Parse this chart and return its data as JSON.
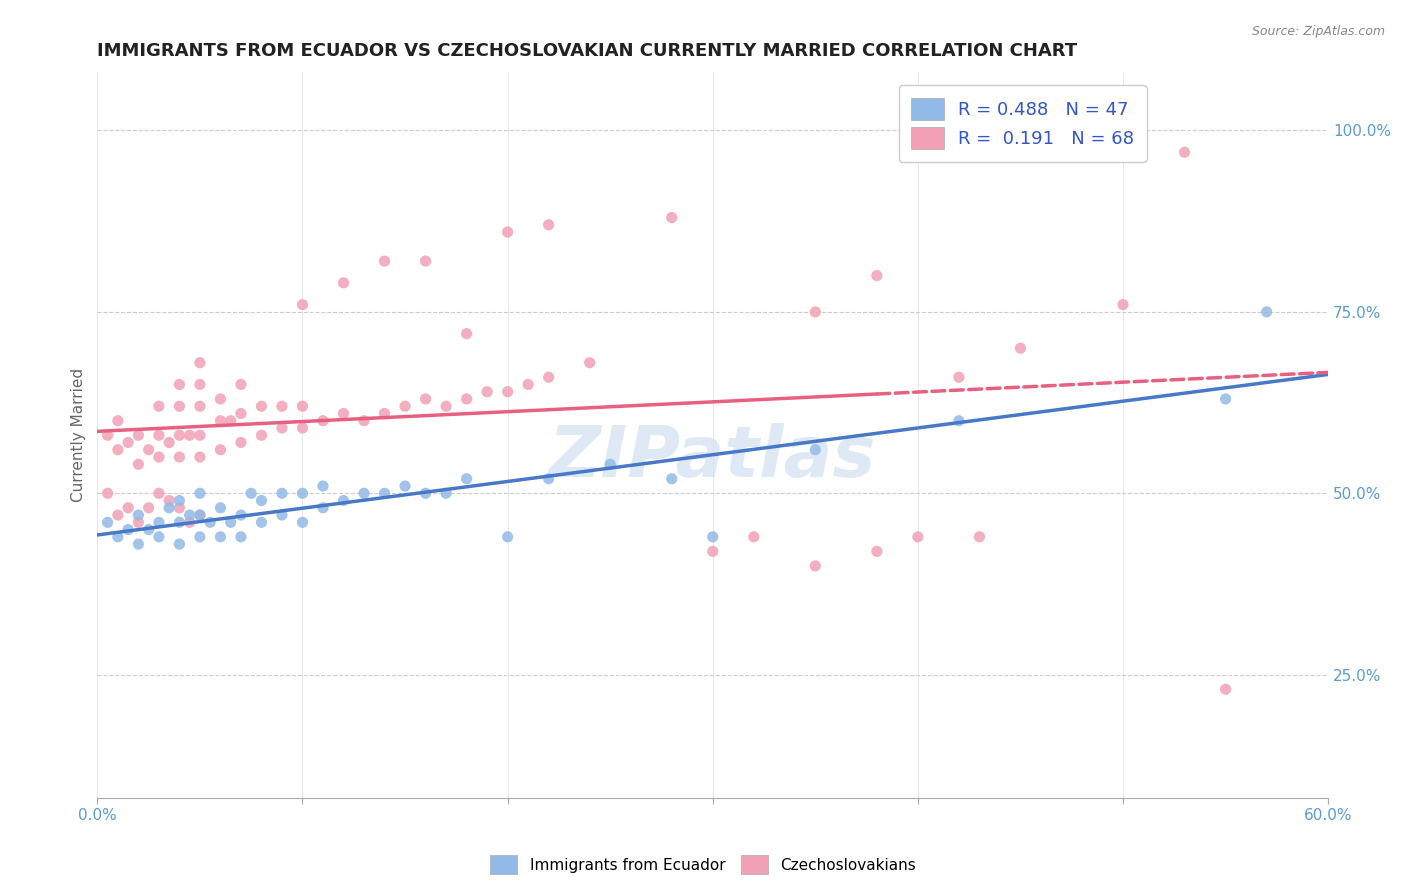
{
  "title": "IMMIGRANTS FROM ECUADOR VS CZECHOSLOVAKIAN CURRENTLY MARRIED CORRELATION CHART",
  "source_text": "Source: ZipAtlas.com",
  "ylabel": "Currently Married",
  "xlim": [
    0.0,
    0.6
  ],
  "ylim": [
    0.08,
    1.08
  ],
  "ytick_positions": [
    0.25,
    0.5,
    0.75,
    1.0
  ],
  "ytick_labels": [
    "25.0%",
    "50.0%",
    "75.0%",
    "100.0%"
  ],
  "watermark": "ZIPatlas",
  "blue_color": "#92BAE8",
  "pink_color": "#F2A0B5",
  "blue_line_color": "#4878C8",
  "pink_line_color": "#E86080",
  "legend_R_blue": "0.488",
  "legend_N_blue": "47",
  "legend_R_pink": "0.191",
  "legend_N_pink": "68",
  "title_fontsize": 13,
  "axis_label_fontsize": 11,
  "tick_fontsize": 11,
  "legend_fontsize": 13,
  "blue_x": [
    0.005,
    0.01,
    0.015,
    0.02,
    0.02,
    0.025,
    0.03,
    0.03,
    0.035,
    0.04,
    0.04,
    0.04,
    0.045,
    0.05,
    0.05,
    0.05,
    0.055,
    0.06,
    0.06,
    0.065,
    0.07,
    0.07,
    0.075,
    0.08,
    0.08,
    0.09,
    0.09,
    0.1,
    0.1,
    0.11,
    0.11,
    0.12,
    0.13,
    0.14,
    0.15,
    0.16,
    0.17,
    0.18,
    0.2,
    0.22,
    0.25,
    0.28,
    0.3,
    0.35,
    0.42,
    0.55,
    0.57
  ],
  "blue_y": [
    0.46,
    0.44,
    0.45,
    0.43,
    0.47,
    0.45,
    0.44,
    0.46,
    0.48,
    0.43,
    0.46,
    0.49,
    0.47,
    0.44,
    0.47,
    0.5,
    0.46,
    0.44,
    0.48,
    0.46,
    0.44,
    0.47,
    0.5,
    0.46,
    0.49,
    0.47,
    0.5,
    0.46,
    0.5,
    0.48,
    0.51,
    0.49,
    0.5,
    0.5,
    0.51,
    0.5,
    0.5,
    0.52,
    0.44,
    0.52,
    0.54,
    0.52,
    0.44,
    0.56,
    0.6,
    0.63,
    0.75
  ],
  "pink_x": [
    0.005,
    0.01,
    0.01,
    0.015,
    0.02,
    0.02,
    0.025,
    0.03,
    0.03,
    0.03,
    0.035,
    0.04,
    0.04,
    0.04,
    0.04,
    0.045,
    0.05,
    0.05,
    0.05,
    0.05,
    0.05,
    0.06,
    0.06,
    0.06,
    0.065,
    0.07,
    0.07,
    0.07,
    0.08,
    0.08,
    0.09,
    0.09,
    0.1,
    0.1,
    0.11,
    0.12,
    0.13,
    0.14,
    0.15,
    0.16,
    0.17,
    0.18,
    0.19,
    0.2,
    0.21,
    0.22,
    0.24,
    0.1,
    0.12,
    0.14,
    0.16,
    0.18,
    0.2,
    0.22,
    0.28,
    0.35,
    0.38,
    0.42,
    0.45,
    0.5,
    0.53,
    0.3,
    0.32,
    0.35,
    0.38,
    0.4,
    0.43,
    0.55
  ],
  "pink_y": [
    0.58,
    0.56,
    0.6,
    0.57,
    0.54,
    0.58,
    0.56,
    0.55,
    0.58,
    0.62,
    0.57,
    0.55,
    0.58,
    0.62,
    0.65,
    0.58,
    0.55,
    0.58,
    0.62,
    0.65,
    0.68,
    0.56,
    0.6,
    0.63,
    0.6,
    0.57,
    0.61,
    0.65,
    0.58,
    0.62,
    0.59,
    0.62,
    0.59,
    0.62,
    0.6,
    0.61,
    0.6,
    0.61,
    0.62,
    0.63,
    0.62,
    0.63,
    0.64,
    0.64,
    0.65,
    0.66,
    0.68,
    0.76,
    0.79,
    0.82,
    0.82,
    0.72,
    0.86,
    0.87,
    0.88,
    0.75,
    0.8,
    0.66,
    0.7,
    0.76,
    0.97,
    0.42,
    0.44,
    0.4,
    0.42,
    0.44,
    0.44,
    0.23
  ],
  "pink_low_x": [
    0.005,
    0.01,
    0.015,
    0.02,
    0.025,
    0.03,
    0.035,
    0.04,
    0.045,
    0.05
  ],
  "pink_low_y": [
    0.5,
    0.47,
    0.48,
    0.46,
    0.48,
    0.5,
    0.49,
    0.48,
    0.46,
    0.47
  ]
}
